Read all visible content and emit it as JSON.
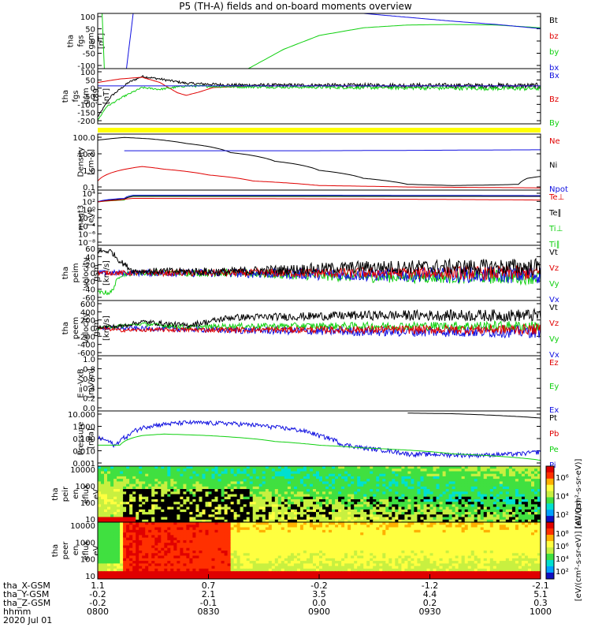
{
  "title": "P5 (TH-A) fields and on-board moments overview",
  "colors": {
    "black": "#000000",
    "red": "#e00000",
    "green": "#10d010",
    "blue": "#1010e0",
    "yellow": "#ffff00"
  },
  "chart_data": [
    {
      "type": "line",
      "id": "fgs",
      "ylabel": [
        "tha",
        "fgs",
        "gsm",
        "[nT]"
      ],
      "yticks": [
        "100",
        "50",
        "0",
        "-50",
        "-100"
      ],
      "ylim": [
        -100,
        100
      ],
      "legend": [
        {
          "label": "Bt",
          "color": "black"
        },
        {
          "label": "bz",
          "color": "red"
        },
        {
          "label": "by",
          "color": "green"
        },
        {
          "label": "bx",
          "color": "blue"
        }
      ],
      "series": [
        {
          "color": "green",
          "points": [
            [
              0.01,
              100
            ],
            [
              0.015,
              -100
            ]
          ]
        },
        {
          "color": "blue",
          "points": [
            [
              0.065,
              -100
            ],
            [
              0.08,
              100
            ]
          ]
        },
        {
          "color": "green",
          "points": [
            [
              0.34,
              -100
            ],
            [
              0.42,
              -30
            ],
            [
              0.5,
              20
            ],
            [
              0.6,
              48
            ],
            [
              0.7,
              58
            ],
            [
              0.8,
              60
            ],
            [
              0.9,
              58
            ],
            [
              1.0,
              48
            ]
          ]
        },
        {
          "color": "blue",
          "points": [
            [
              0.6,
              100
            ],
            [
              0.8,
              72
            ],
            [
              0.9,
              60
            ],
            [
              1.0,
              45
            ]
          ]
        }
      ]
    },
    {
      "type": "line",
      "id": "fgs_t89",
      "ylabel": [
        "tha",
        "fgs",
        "gsm",
        "-t89",
        "[nT]"
      ],
      "yticks": [
        "100",
        "50",
        "0",
        "-50",
        "-100",
        "-150",
        "-200"
      ],
      "ylim": [
        -220,
        100
      ],
      "legend": [
        {
          "label": "Bx",
          "color": "blue"
        },
        {
          "label": "Bz",
          "color": "red"
        },
        {
          "label": "By",
          "color": "green"
        }
      ],
      "series": [
        {
          "color": "black",
          "noise": 12,
          "points": [
            [
              0,
              -180
            ],
            [
              0.03,
              -60
            ],
            [
              0.07,
              20
            ],
            [
              0.1,
              55
            ],
            [
              0.14,
              40
            ],
            [
              0.2,
              15
            ],
            [
              0.3,
              5
            ],
            [
              1.0,
              0
            ]
          ]
        },
        {
          "color": "red",
          "points": [
            [
              0,
              20
            ],
            [
              0.05,
              40
            ],
            [
              0.1,
              50
            ],
            [
              0.14,
              20
            ],
            [
              0.16,
              -10
            ],
            [
              0.18,
              -40
            ],
            [
              0.2,
              -55
            ],
            [
              0.23,
              -35
            ],
            [
              0.26,
              -10
            ],
            [
              0.35,
              0
            ],
            [
              1.0,
              0
            ]
          ]
        },
        {
          "color": "green",
          "noise": 10,
          "points": [
            [
              0,
              -200
            ],
            [
              0.02,
              -120
            ],
            [
              0.06,
              -60
            ],
            [
              0.1,
              -10
            ],
            [
              0.14,
              -20
            ],
            [
              0.2,
              0
            ],
            [
              0.3,
              -5
            ],
            [
              1.0,
              -15
            ]
          ]
        },
        {
          "color": "blue",
          "points": [
            [
              0,
              0
            ],
            [
              1.0,
              0
            ]
          ]
        }
      ]
    },
    {
      "type": "line",
      "id": "density",
      "ylabel": [
        "Density",
        "[cm-3]"
      ],
      "scale": "log",
      "yticks": [
        "100.0",
        "10.0",
        "1.0",
        "0.1"
      ],
      "ylim": [
        0.05,
        250
      ],
      "legend": [
        {
          "label": "Ne",
          "color": "red"
        },
        {
          "label": "Ni",
          "color": "black"
        },
        {
          "label": "Npot",
          "color": "blue"
        }
      ],
      "series": [
        {
          "color": "black",
          "points": [
            [
              0,
              100
            ],
            [
              0.06,
              150
            ],
            [
              0.12,
              120
            ],
            [
              0.2,
              60
            ],
            [
              0.3,
              15
            ],
            [
              0.4,
              4
            ],
            [
              0.5,
              1
            ],
            [
              0.6,
              0.3
            ],
            [
              0.7,
              0.12
            ],
            [
              0.8,
              0.1
            ],
            [
              0.9,
              0.11
            ],
            [
              0.95,
              0.12
            ],
            [
              0.97,
              0.3
            ],
            [
              1.0,
              0.4
            ]
          ]
        },
        {
          "color": "red",
          "points": [
            [
              0,
              0.2
            ],
            [
              0.05,
              1
            ],
            [
              0.1,
              1.8
            ],
            [
              0.15,
              1.2
            ],
            [
              0.25,
              0.5
            ],
            [
              0.35,
              0.2
            ],
            [
              0.5,
              0.1
            ],
            [
              0.7,
              0.08
            ],
            [
              1.0,
              0.07
            ]
          ]
        },
        {
          "color": "blue",
          "points": [
            [
              0.06,
              20
            ],
            [
              0.5,
              20
            ],
            [
              0.7,
              21
            ],
            [
              1.0,
              23
            ]
          ]
        }
      ]
    },
    {
      "type": "line",
      "id": "magt3",
      "ylabel": [
        "magt3",
        "[eV]"
      ],
      "scale": "log",
      "yticks": [
        "10⁴",
        "10²",
        "10⁰",
        "10⁻²",
        "10⁻⁴",
        "10⁻⁶",
        "10⁻⁸"
      ],
      "ylim": [
        1e-09,
        100000.0
      ],
      "legend": [
        {
          "label": "Te⊥",
          "color": "red"
        },
        {
          "label": "Te∥",
          "color": "black"
        },
        {
          "label": "Ti⊥",
          "color": "green"
        },
        {
          "label": "Ti∥",
          "color": "green"
        }
      ],
      "series": [
        {
          "color": "green",
          "points": [
            [
              0,
              100
            ],
            [
              0.06,
              300
            ],
            [
              0.08,
              3000
            ],
            [
              1.0,
              3000
            ]
          ]
        },
        {
          "color": "black",
          "points": [
            [
              0,
              100
            ],
            [
              0.06,
              500
            ],
            [
              0.08,
              2500
            ],
            [
              1.0,
              2500
            ]
          ]
        },
        {
          "color": "blue",
          "points": [
            [
              0,
              100
            ],
            [
              0.06,
              800
            ],
            [
              0.08,
              5000
            ],
            [
              0.5,
              5000
            ],
            [
              1.0,
              4000
            ]
          ]
        },
        {
          "color": "red",
          "points": [
            [
              0,
              100
            ],
            [
              0.05,
              300
            ],
            [
              0.08,
              800
            ],
            [
              0.5,
              600
            ],
            [
              1.0,
              300
            ]
          ]
        }
      ]
    },
    {
      "type": "line",
      "id": "peim_vel",
      "ylabel": [
        "tha",
        "peim",
        "velocity",
        "gsm",
        "[km/s]"
      ],
      "yticks": [
        "60",
        "40",
        "20",
        "0",
        "-20",
        "-40",
        "-60"
      ],
      "ylim": [
        -70,
        70
      ],
      "legend": [
        {
          "label": "Vt",
          "color": "black"
        },
        {
          "label": "Vz",
          "color": "red"
        },
        {
          "label": "Vy",
          "color": "green"
        },
        {
          "label": "Vx",
          "color": "blue"
        }
      ],
      "series": [
        {
          "color": "green",
          "noise": 14,
          "points": [
            [
              0,
              -50
            ],
            [
              0.03,
              -50
            ],
            [
              0.05,
              -5
            ],
            [
              0.08,
              0
            ],
            [
              0.3,
              0
            ],
            [
              0.6,
              -10
            ],
            [
              1.0,
              -10
            ]
          ]
        },
        {
          "color": "blue",
          "noise": 16,
          "points": [
            [
              0,
              0
            ],
            [
              0.3,
              0
            ],
            [
              0.6,
              -5
            ],
            [
              1.0,
              -5
            ]
          ]
        },
        {
          "color": "red",
          "noise": 14,
          "points": [
            [
              0,
              0
            ],
            [
              0.3,
              0
            ],
            [
              0.6,
              0
            ],
            [
              1.0,
              0
            ]
          ]
        },
        {
          "color": "black",
          "noise": 16,
          "points": [
            [
              0,
              55
            ],
            [
              0.03,
              55
            ],
            [
              0.05,
              30
            ],
            [
              0.08,
              5
            ],
            [
              0.3,
              3
            ],
            [
              0.6,
              15
            ],
            [
              1.0,
              15
            ]
          ]
        }
      ]
    },
    {
      "type": "line",
      "id": "peem_vel",
      "ylabel": [
        "tha",
        "peem",
        "velocity",
        "gsm",
        "[km/s]"
      ],
      "yticks": [
        "600",
        "400",
        "200",
        "0",
        "-200",
        "-400",
        "-600"
      ],
      "ylim": [
        -650,
        650
      ],
      "legend": [
        {
          "label": "Vt",
          "color": "black"
        },
        {
          "label": "Vz",
          "color": "red"
        },
        {
          "label": "Vy",
          "color": "green"
        },
        {
          "label": "Vx",
          "color": "blue"
        }
      ],
      "series": [
        {
          "color": "blue",
          "noise": 110,
          "points": [
            [
              0,
              0
            ],
            [
              0.2,
              -20
            ],
            [
              0.3,
              -50
            ],
            [
              0.6,
              -80
            ],
            [
              1.0,
              -80
            ]
          ]
        },
        {
          "color": "green",
          "noise": 90,
          "points": [
            [
              0,
              0
            ],
            [
              0.1,
              100
            ],
            [
              0.2,
              20
            ],
            [
              0.3,
              50
            ],
            [
              1.0,
              50
            ]
          ]
        },
        {
          "color": "red",
          "noise": 90,
          "points": [
            [
              0,
              0
            ],
            [
              0.05,
              -50
            ],
            [
              0.15,
              -40
            ],
            [
              0.3,
              -40
            ],
            [
              1.0,
              -30
            ]
          ]
        },
        {
          "color": "black",
          "noise": 110,
          "points": [
            [
              0,
              30
            ],
            [
              0.05,
              40
            ],
            [
              0.1,
              150
            ],
            [
              0.2,
              60
            ],
            [
              0.25,
              150
            ],
            [
              0.3,
              250
            ],
            [
              0.6,
              300
            ],
            [
              1.0,
              300
            ]
          ]
        }
      ]
    },
    {
      "type": "line",
      "id": "efield",
      "ylabel": [
        "E=-VxB",
        "[mV/m]"
      ],
      "yticks": [
        "1.0",
        "0.8",
        "0.6",
        "0.4",
        "0.2",
        "0.0"
      ],
      "ylim": [
        0,
        1
      ],
      "legend": [
        {
          "label": "Ez",
          "color": "red"
        },
        {
          "label": "Ey",
          "color": "green"
        },
        {
          "label": "Ex",
          "color": "blue"
        }
      ],
      "series": []
    },
    {
      "type": "line",
      "id": "pressure",
      "ylabel": [
        "Pressure",
        "[nPa]"
      ],
      "scale": "log",
      "yticks": [
        "10.000",
        "1.000",
        "0.100",
        "0.010",
        "0.001"
      ],
      "ylim": [
        0.001,
        30
      ],
      "legend": [
        {
          "label": "Pt",
          "color": "black"
        },
        {
          "label": "Pb",
          "color": "red"
        },
        {
          "label": "Pe",
          "color": "green"
        },
        {
          "label": "Pi",
          "color": "blue"
        }
      ],
      "series": [
        {
          "color": "black",
          "points": [
            [
              0.7,
              20
            ],
            [
              0.8,
              18
            ],
            [
              1.0,
              8
            ]
          ]
        },
        {
          "color": "blue",
          "noise": 0.08,
          "points": [
            [
              0,
              0.2
            ],
            [
              0.04,
              0.04
            ],
            [
              0.07,
              0.3
            ],
            [
              0.12,
              2
            ],
            [
              0.2,
              3.5
            ],
            [
              0.3,
              3
            ],
            [
              0.4,
              1.5
            ],
            [
              0.5,
              0.3
            ],
            [
              0.55,
              0.06
            ],
            [
              0.6,
              0.03
            ],
            [
              0.7,
              0.01
            ],
            [
              0.85,
              0.008
            ],
            [
              0.95,
              0.01
            ],
            [
              1.0,
              0.015
            ]
          ]
        },
        {
          "color": "green",
          "points": [
            [
              0,
              0.05
            ],
            [
              0.05,
              0.05
            ],
            [
              0.1,
              0.3
            ],
            [
              0.15,
              0.4
            ],
            [
              0.25,
              0.3
            ],
            [
              0.4,
              0.1
            ],
            [
              0.5,
              0.05
            ],
            [
              0.6,
              0.03
            ],
            [
              0.8,
              0.01
            ],
            [
              1.0,
              0.003
            ]
          ]
        }
      ]
    },
    {
      "type": "heatmap",
      "id": "peir",
      "ylabel": [
        "tha",
        "peir",
        "en",
        "eflux",
        "eV",
        "[eV/(cm²-s-",
        "sr-eV)]"
      ],
      "yticks": [
        "10000",
        "1000",
        "100",
        "10"
      ],
      "colorbar_ticks": [
        "10⁶",
        "10⁴",
        "10²"
      ]
    },
    {
      "type": "heatmap",
      "id": "peer",
      "ylabel": [
        "tha",
        "peer",
        "en",
        "eflux",
        "eV",
        "[eV/(cm²-s-",
        "sr-eV)]"
      ],
      "yticks": [
        "10000",
        "1000",
        "100",
        "10"
      ],
      "colorbar_ticks": [
        "10⁸",
        "10⁶",
        "10⁴",
        "10²"
      ]
    }
  ],
  "colorbar_label": "[eV/(cm²-s-sr-eV)] (All Qs)",
  "colorbar_label_top": "[eV/(cm²-s-sr-eV)]",
  "xaxis": {
    "row_labels": [
      "tha_X-GSM",
      "tha_Y-GSM",
      "tha_Z-GSM",
      "hhmm",
      "2020 Jul 01"
    ],
    "columns": [
      [
        "1.1",
        "-0.2",
        "-0.2",
        "0800"
      ],
      [
        "0.7",
        "2.1",
        "-0.1",
        "0830"
      ],
      [
        "-0.2",
        "3.5",
        "0.0",
        "0900"
      ],
      [
        "-1.2",
        "4.4",
        "0.2",
        "0930"
      ],
      [
        "-2.1",
        "5.1",
        "0.3",
        "1000"
      ]
    ]
  }
}
